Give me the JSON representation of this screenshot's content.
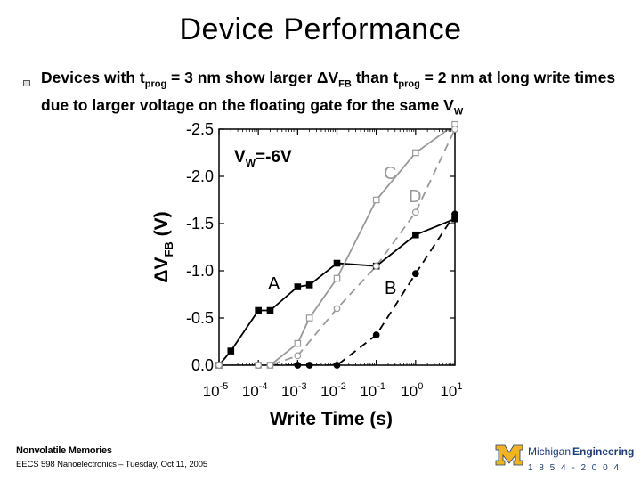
{
  "slide": {
    "title": "Device Performance",
    "bullet": {
      "part1": "Devices with t",
      "sub1": "prog",
      "part2": " = 3 nm show larger ΔV",
      "sub2": "FB",
      "part3": " than t",
      "sub3": "prog",
      "part4": " = 2 nm at long write times due to larger voltage on the floating gate for the same V",
      "sub4": "W"
    },
    "footer_course": "Nonvolatile Memories",
    "footer_info": "EECS 598 Nanoelectronics – Tuesday, Oct 11, 2005",
    "logo": {
      "word1": "Michigan",
      "word2": "Engineering",
      "years": "1 8 5 4 - 2 0 0 4",
      "colors": {
        "maize": "#f0b323",
        "blue": "#1e3c78"
      }
    }
  },
  "chart_data": {
    "type": "line",
    "xlabel": "Write Time (s)",
    "ylabel": "ΔV",
    "ylabel_sub": "FB",
    "ylabel_unit": "(V)",
    "xscale": "log",
    "xlim": [
      1e-05,
      10
    ],
    "ylim": [
      0.0,
      -2.5
    ],
    "y_ticks": [
      "0.0",
      "-0.5",
      "-1.0",
      "-1.5",
      "-2.0",
      "-2.5"
    ],
    "y_tick_values": [
      0.0,
      -0.5,
      -1.0,
      -1.5,
      -2.0,
      -2.5
    ],
    "x_tick_exponents": [
      "-5",
      "-4",
      "-3",
      "-2",
      "-1",
      "0",
      "1"
    ],
    "x_tick_values": [
      1e-05,
      0.0001,
      0.001,
      0.01,
      0.1,
      1,
      10
    ],
    "annotation": {
      "main": "V",
      "sub": "W",
      "rest": "=-6V"
    },
    "series": [
      {
        "name": "A",
        "color": "#000000",
        "line": "solid",
        "marker": "filled-square",
        "x": [
          1e-05,
          2e-05,
          0.0001,
          0.0002,
          0.001,
          0.002,
          0.01,
          0.1,
          1,
          10
        ],
        "y": [
          0.0,
          -0.15,
          -0.58,
          -0.58,
          -0.83,
          -0.85,
          -1.08,
          -1.05,
          -1.38,
          -1.55
        ]
      },
      {
        "name": "B",
        "color": "#000000",
        "line": "dashed",
        "marker": "filled-circle",
        "x": [
          1e-05,
          0.0001,
          0.001,
          0.002,
          0.01,
          0.1,
          1,
          10
        ],
        "y": [
          0.0,
          0.0,
          0.0,
          0.0,
          0.0,
          -0.32,
          -0.97,
          -1.6
        ]
      },
      {
        "name": "C",
        "color": "#999999",
        "line": "solid",
        "marker": "open-square",
        "x": [
          1e-05,
          0.0001,
          0.0002,
          0.001,
          0.002,
          0.01,
          0.1,
          1,
          10
        ],
        "y": [
          0.0,
          0.0,
          0.0,
          -0.23,
          -0.5,
          -0.92,
          -1.75,
          -2.25,
          -2.55
        ]
      },
      {
        "name": "D",
        "color": "#999999",
        "line": "dashed",
        "marker": "open-circle",
        "x": [
          1e-05,
          0.0001,
          0.0002,
          0.001,
          0.01,
          0.1,
          1,
          10
        ],
        "y": [
          0.0,
          0.0,
          0.0,
          -0.1,
          -0.6,
          -1.05,
          -1.62,
          -2.5
        ]
      }
    ],
    "series_labels": {
      "A": "A",
      "B": "B",
      "C": "C",
      "D": "D"
    },
    "grid": false,
    "legend": "none"
  }
}
